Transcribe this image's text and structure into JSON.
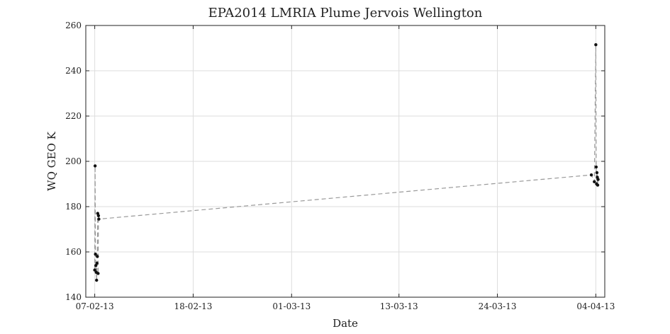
{
  "chart_data": {
    "type": "line",
    "title": "EPA2014 LMRIA Plume Jervois Wellington",
    "xlabel": "Date",
    "ylabel": "WQ GEO K",
    "x_tick_labels": [
      "07-02-13",
      "18-02-13",
      "01-03-13",
      "13-03-13",
      "24-03-13",
      "04-04-13"
    ],
    "x_tick_dates": [
      "2013-02-07",
      "2013-02-18",
      "2013-03-01",
      "2013-03-13",
      "2013-03-24",
      "2013-04-04"
    ],
    "xlim": [
      "2013-02-06",
      "2013-04-05"
    ],
    "ylim": [
      140,
      260
    ],
    "y_ticks": [
      140,
      160,
      180,
      200,
      220,
      240,
      260
    ],
    "grid": true,
    "series": [
      {
        "x": [
          "2013-02-07T00:00",
          "2013-02-07T01:00",
          "2013-02-07T02:00",
          "2013-02-07T03:00",
          "2013-02-07T04:00",
          "2013-02-07T05:00",
          "2013-02-07T06:00",
          "2013-02-07T07:00",
          "2013-02-07T08:00",
          "2013-02-07T09:00",
          "2013-02-07T10:00",
          "2013-02-07T11:00",
          "2013-04-03T12:00",
          "2013-04-03T20:00",
          "2013-04-04T00:00",
          "2013-04-04T01:00",
          "2013-04-04T02:00",
          "2013-04-04T03:00",
          "2013-04-04T04:00",
          "2013-04-04T05:00",
          "2013-04-04T06:00"
        ],
        "y": [
          152,
          198,
          159,
          154,
          151,
          147.5,
          155,
          158,
          177,
          150.5,
          176,
          174.5,
          194,
          191,
          251.5,
          197.5,
          190,
          195,
          193,
          189.5,
          192
        ],
        "color": "#999999",
        "marker_color": "#111111"
      }
    ]
  }
}
